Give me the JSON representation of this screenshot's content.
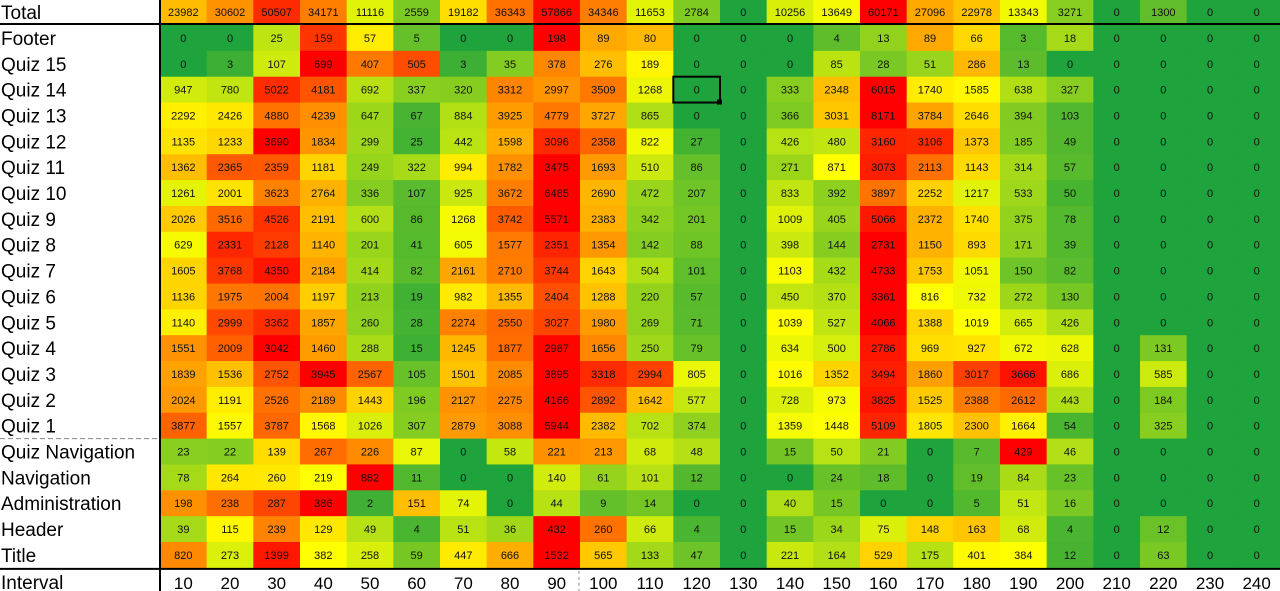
{
  "chart_data": {
    "type": "heatmap",
    "xlabel": "Interval",
    "x": [
      "10",
      "20",
      "30",
      "40",
      "50",
      "60",
      "70",
      "80",
      "90",
      "100",
      "110",
      "120",
      "130",
      "140",
      "150",
      "160",
      "170",
      "180",
      "190",
      "200",
      "210",
      "220",
      "230",
      "240"
    ],
    "rows": [
      {
        "name": "Total",
        "values": [
          23982,
          30602,
          50507,
          34171,
          11116,
          2559,
          19182,
          36343,
          57866,
          34346,
          11653,
          2784,
          0,
          10256,
          13649,
          60171,
          27096,
          22978,
          13343,
          3271,
          0,
          1300,
          0,
          0
        ]
      },
      {
        "name": "Footer",
        "values": [
          0,
          0,
          25,
          159,
          57,
          5,
          0,
          0,
          198,
          89,
          80,
          0,
          0,
          0,
          4,
          13,
          89,
          66,
          3,
          18,
          0,
          0,
          0,
          0
        ]
      },
      {
        "name": "Quiz 15",
        "values": [
          0,
          3,
          107,
          699,
          407,
          505,
          3,
          35,
          378,
          276,
          189,
          0,
          0,
          0,
          85,
          28,
          51,
          286,
          13,
          0,
          0,
          0,
          0,
          0
        ]
      },
      {
        "name": "Quiz 14",
        "values": [
          947,
          780,
          5022,
          4181,
          692,
          337,
          320,
          3312,
          2997,
          3509,
          1268,
          0,
          0,
          333,
          2348,
          6015,
          1740,
          1585,
          638,
          327,
          0,
          0,
          0,
          0
        ]
      },
      {
        "name": "Quiz 13",
        "values": [
          2292,
          2426,
          4880,
          4239,
          647,
          67,
          884,
          3925,
          4779,
          3727,
          865,
          0,
          0,
          366,
          3031,
          8171,
          3784,
          2646,
          394,
          103,
          0,
          0,
          0,
          0
        ]
      },
      {
        "name": "Quiz 12",
        "values": [
          1135,
          1233,
          3690,
          1834,
          299,
          25,
          442,
          1598,
          3096,
          2358,
          822,
          27,
          0,
          426,
          480,
          3160,
          3106,
          1373,
          185,
          49,
          0,
          0,
          0,
          0
        ]
      },
      {
        "name": "Quiz 11",
        "values": [
          1362,
          2365,
          2359,
          1181,
          249,
          322,
          994,
          1782,
          3475,
          1693,
          510,
          86,
          0,
          271,
          871,
          3073,
          2113,
          1143,
          314,
          57,
          0,
          0,
          0,
          0
        ]
      },
      {
        "name": "Quiz 10",
        "values": [
          1261,
          2001,
          3623,
          2764,
          336,
          107,
          925,
          3672,
          6485,
          2690,
          472,
          207,
          0,
          833,
          392,
          3897,
          2252,
          1217,
          533,
          50,
          0,
          0,
          0,
          0
        ]
      },
      {
        "name": "Quiz 9",
        "values": [
          2026,
          3516,
          4526,
          2191,
          600,
          86,
          1268,
          3742,
          5571,
          2383,
          342,
          201,
          0,
          1009,
          405,
          5066,
          2372,
          1740,
          375,
          78,
          0,
          0,
          0,
          0
        ]
      },
      {
        "name": "Quiz 8",
        "values": [
          629,
          2331,
          2128,
          1140,
          201,
          41,
          605,
          1577,
          2351,
          1354,
          142,
          88,
          0,
          398,
          144,
          2731,
          1150,
          893,
          171,
          39,
          0,
          0,
          0,
          0
        ]
      },
      {
        "name": "Quiz 7",
        "values": [
          1605,
          3768,
          4350,
          2184,
          414,
          82,
          2161,
          2710,
          3744,
          1643,
          504,
          101,
          0,
          1103,
          432,
          4733,
          1753,
          1051,
          150,
          82,
          0,
          0,
          0,
          0
        ]
      },
      {
        "name": "Quiz 6",
        "values": [
          1136,
          1975,
          2004,
          1197,
          213,
          19,
          982,
          1355,
          2404,
          1288,
          220,
          57,
          0,
          450,
          370,
          3361,
          816,
          732,
          272,
          130,
          0,
          0,
          0,
          0
        ]
      },
      {
        "name": "Quiz 5",
        "values": [
          1140,
          2999,
          3362,
          1857,
          260,
          28,
          2274,
          2550,
          3027,
          1980,
          269,
          71,
          0,
          1039,
          527,
          4066,
          1388,
          1019,
          665,
          426,
          0,
          0,
          0,
          0
        ]
      },
      {
        "name": "Quiz 4",
        "values": [
          1551,
          2009,
          3042,
          1460,
          288,
          15,
          1245,
          1877,
          2987,
          1656,
          250,
          79,
          0,
          634,
          500,
          2786,
          969,
          927,
          672,
          628,
          0,
          131,
          0,
          0
        ]
      },
      {
        "name": "Quiz 3",
        "values": [
          1839,
          1536,
          2752,
          3945,
          2567,
          105,
          1501,
          2085,
          3895,
          3318,
          2994,
          805,
          0,
          1016,
          1352,
          3494,
          1860,
          3017,
          3666,
          686,
          0,
          585,
          0,
          0
        ]
      },
      {
        "name": "Quiz 2",
        "values": [
          2024,
          1191,
          2526,
          2189,
          1443,
          196,
          2127,
          2275,
          4166,
          2892,
          1642,
          577,
          0,
          728,
          973,
          3825,
          1525,
          2388,
          2612,
          443,
          0,
          184,
          0,
          0
        ]
      },
      {
        "name": "Quiz 1",
        "values": [
          3877,
          1557,
          3787,
          1568,
          1026,
          307,
          2879,
          3088,
          5944,
          2382,
          702,
          374,
          0,
          1359,
          1448,
          5109,
          1805,
          2300,
          1664,
          54,
          0,
          325,
          0,
          0
        ]
      },
      {
        "name": "Quiz Navigation",
        "values": [
          23,
          22,
          139,
          267,
          226,
          87,
          0,
          58,
          221,
          213,
          68,
          48,
          0,
          15,
          50,
          21,
          0,
          7,
          429,
          46,
          0,
          0,
          0,
          0
        ]
      },
      {
        "name": "Navigation",
        "values": [
          78,
          264,
          260,
          219,
          882,
          11,
          0,
          0,
          140,
          61,
          101,
          12,
          0,
          0,
          24,
          18,
          0,
          19,
          84,
          23,
          0,
          0,
          0,
          0
        ]
      },
      {
        "name": "Administration",
        "values": [
          198,
          238,
          287,
          386,
          2,
          151,
          74,
          0,
          44,
          9,
          14,
          0,
          0,
          40,
          15,
          0,
          0,
          5,
          51,
          16,
          0,
          0,
          0,
          0
        ]
      },
      {
        "name": "Header",
        "values": [
          39,
          115,
          239,
          129,
          49,
          4,
          51,
          36,
          432,
          260,
          66,
          4,
          0,
          15,
          34,
          75,
          148,
          163,
          68,
          4,
          0,
          12,
          0,
          0
        ]
      },
      {
        "name": "Title",
        "values": [
          820,
          273,
          1399,
          382,
          258,
          59,
          447,
          666,
          1532,
          565,
          133,
          47,
          0,
          221,
          164,
          529,
          175,
          401,
          384,
          12,
          0,
          63,
          0,
          0
        ]
      }
    ],
    "colors": {
      "low": "#1fa33c",
      "mid": "#ffff00",
      "high": "#ff0000",
      "text": "#111111",
      "divider": "#000000"
    },
    "grid": false
  }
}
